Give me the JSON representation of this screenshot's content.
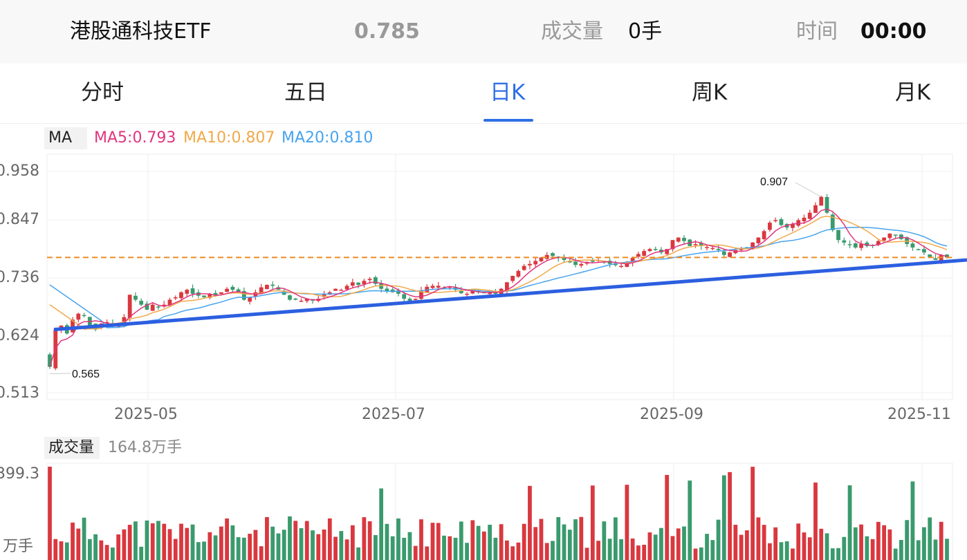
{
  "header": {
    "name": "港股通科技ETF",
    "price": "0.785",
    "volume_label": "成交量",
    "volume_value": "0手",
    "time_label": "时间",
    "time_value": "00:00"
  },
  "tabs": [
    {
      "label": "分时",
      "active": false
    },
    {
      "label": "五日",
      "active": false
    },
    {
      "label": "日K",
      "active": true
    },
    {
      "label": "周K",
      "active": false
    },
    {
      "label": "月K",
      "active": false
    }
  ],
  "legend": {
    "ma_label": "MA",
    "ma5": "MA5:0.793",
    "ma10": "MA10:0.807",
    "ma20": "MA20:0.810"
  },
  "colors": {
    "up": "#d9383f",
    "down": "#3a9a6d",
    "ma5": "#e0357e",
    "ma10": "#f0a94a",
    "ma20": "#47a3ef",
    "trendline": "#2c5fe0",
    "support": "#ee8b22",
    "accent": "#2f6fe6"
  },
  "price_axis": {
    "ticks": [
      "0.958",
      "0.847",
      "0.736",
      "0.624",
      "0.513"
    ]
  },
  "date_axis": {
    "ticks": [
      "2025-05",
      "2025-07",
      "2025-09",
      "2025-11"
    ]
  },
  "annotations": {
    "high": "0.907",
    "low": "0.565"
  },
  "volume": {
    "label": "成交量",
    "total": "164.8万手",
    "axis_top": "399.3",
    "axis_unit": "万手"
  },
  "chart_data": {
    "type": "candlestick",
    "ylim": [
      0.513,
      0.958
    ],
    "support_level": 0.785,
    "trendline": {
      "start": 0.64,
      "end": 0.78
    },
    "candles_close": [
      0.565,
      0.64,
      0.648,
      0.632,
      0.66,
      0.672,
      0.668,
      0.648,
      0.64,
      0.652,
      0.655,
      0.648,
      0.65,
      0.665,
      0.71,
      0.7,
      0.69,
      0.68,
      0.69,
      0.685,
      0.69,
      0.7,
      0.705,
      0.715,
      0.72,
      0.712,
      0.708,
      0.705,
      0.712,
      0.708,
      0.715,
      0.722,
      0.72,
      0.715,
      0.7,
      0.705,
      0.715,
      0.725,
      0.73,
      0.728,
      0.72,
      0.71,
      0.7,
      0.7,
      0.698,
      0.702,
      0.698,
      0.702,
      0.712,
      0.715,
      0.722,
      0.72,
      0.728,
      0.735,
      0.73,
      0.738,
      0.742,
      0.732,
      0.722,
      0.718,
      0.715,
      0.712,
      0.702,
      0.698,
      0.702,
      0.718,
      0.726,
      0.728,
      0.728,
      0.724,
      0.726,
      0.72,
      0.713,
      0.712,
      0.718,
      0.715,
      0.715,
      0.714,
      0.712,
      0.722,
      0.735,
      0.748,
      0.758,
      0.768,
      0.772,
      0.778,
      0.785,
      0.79,
      0.788,
      0.784,
      0.78,
      0.775,
      0.77,
      0.772,
      0.776,
      0.778,
      0.78,
      0.775,
      0.772,
      0.77,
      0.768,
      0.776,
      0.784,
      0.792,
      0.798,
      0.802,
      0.8,
      0.795,
      0.802,
      0.82,
      0.825,
      0.818,
      0.808,
      0.812,
      0.808,
      0.806,
      0.804,
      0.8,
      0.79,
      0.795,
      0.8,
      0.802,
      0.805,
      0.815,
      0.825,
      0.838,
      0.855,
      0.86,
      0.85,
      0.845,
      0.852,
      0.86,
      0.865,
      0.875,
      0.89,
      0.907,
      0.875,
      0.84,
      0.82,
      0.815,
      0.81,
      0.805,
      0.812,
      0.808,
      0.81,
      0.818,
      0.825,
      0.833,
      0.83,
      0.822,
      0.812,
      0.805,
      0.8,
      0.795,
      0.785,
      0.78,
      0.79,
      0.785
    ],
    "ma5_final": 0.793,
    "ma10_final": 0.807,
    "ma20_final": 0.81,
    "volume_max": 399.3
  }
}
